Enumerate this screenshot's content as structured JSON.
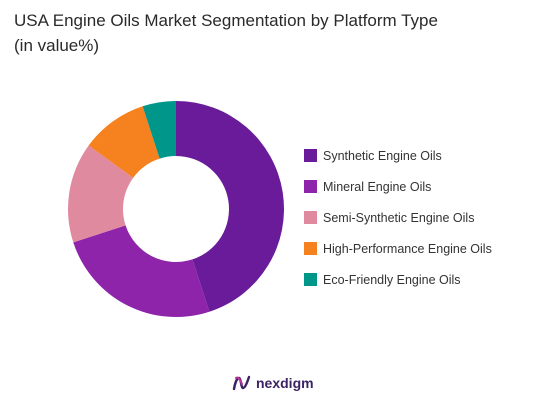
{
  "chart_data": {
    "type": "pie",
    "style": "donut",
    "title": "USA Engine Oils Market Segmentation by Platform Type",
    "subtitle": "(in value%)",
    "categories": [
      "Synthetic Engine Oils",
      "Mineral Engine Oils",
      "Semi-Synthetic Engine Oils",
      "High-Performance Engine Oils",
      "Eco-Friendly Engine Oils"
    ],
    "values": [
      45,
      25,
      15,
      10,
      5
    ],
    "colors": [
      "#6a1b9a",
      "#8e24aa",
      "#e08aa0",
      "#f5821f",
      "#00968a"
    ],
    "legend": "right"
  },
  "brand": {
    "name": "nexdigm",
    "color": "#3b2366"
  }
}
